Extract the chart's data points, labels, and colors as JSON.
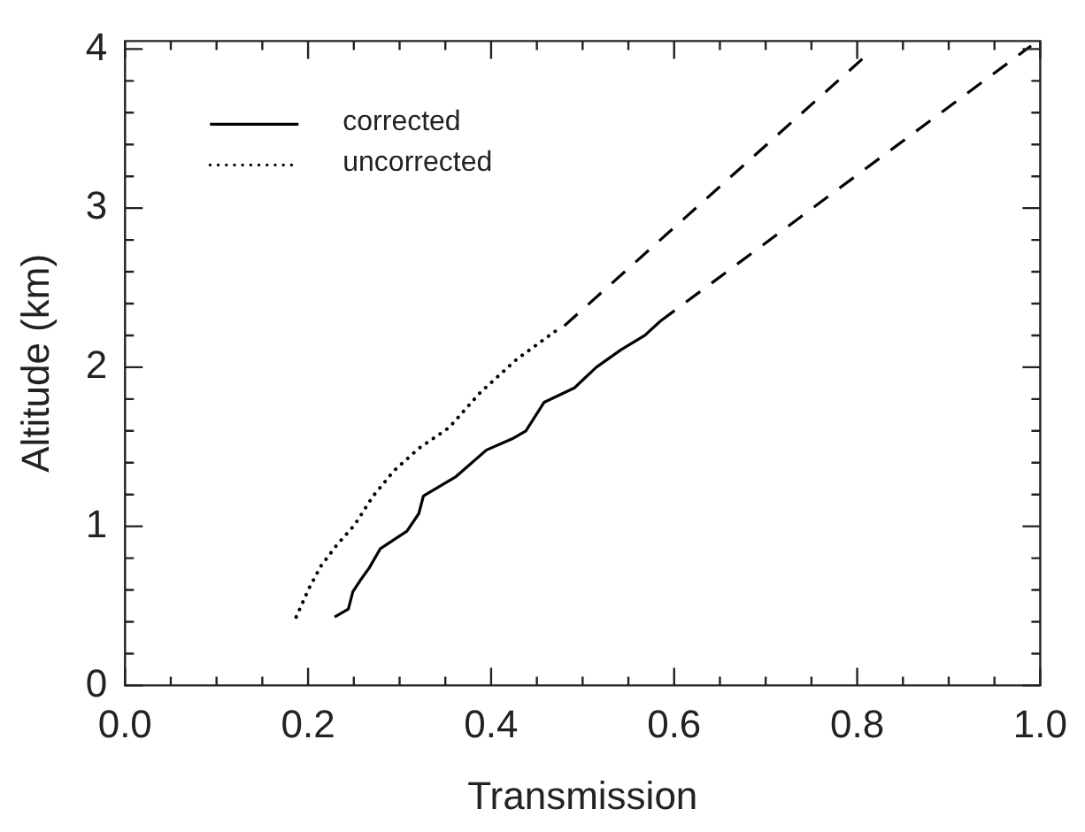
{
  "chart_data": {
    "type": "line",
    "xlabel": "Transmission",
    "ylabel": "Altitude (km)",
    "xlim": [
      0,
      1
    ],
    "ylim": [
      0,
      4.05
    ],
    "xticks": [
      {
        "value": 0,
        "label": "0.0"
      },
      {
        "value": 0.05,
        "label": null
      },
      {
        "value": 0.1,
        "label": null
      },
      {
        "value": 0.15,
        "label": null
      },
      {
        "value": 0.2,
        "label": "0.2"
      },
      {
        "value": 0.25,
        "label": null
      },
      {
        "value": 0.3,
        "label": null
      },
      {
        "value": 0.35,
        "label": null
      },
      {
        "value": 0.4,
        "label": "0.4"
      },
      {
        "value": 0.45,
        "label": null
      },
      {
        "value": 0.5,
        "label": null
      },
      {
        "value": 0.55,
        "label": null
      },
      {
        "value": 0.6,
        "label": "0.6"
      },
      {
        "value": 0.65,
        "label": null
      },
      {
        "value": 0.7,
        "label": null
      },
      {
        "value": 0.75,
        "label": null
      },
      {
        "value": 0.8,
        "label": "0.8"
      },
      {
        "value": 0.85,
        "label": null
      },
      {
        "value": 0.9,
        "label": null
      },
      {
        "value": 0.95,
        "label": null
      },
      {
        "value": 1,
        "label": "1.0"
      }
    ],
    "yticks": [
      0,
      {
        "value": 0.2,
        "label": null
      },
      {
        "value": 0.4,
        "label": null
      },
      {
        "value": 0.6,
        "label": null
      },
      {
        "value": 0.8,
        "label": null
      },
      1,
      {
        "value": 1.2,
        "label": null
      },
      {
        "value": 1.4,
        "label": null
      },
      {
        "value": 1.6,
        "label": null
      },
      {
        "value": 1.8,
        "label": null
      },
      2,
      {
        "value": 2.2,
        "label": null
      },
      {
        "value": 2.4,
        "label": null
      },
      {
        "value": 2.6,
        "label": null
      },
      {
        "value": 2.8,
        "label": null
      },
      3,
      {
        "value": 3.2,
        "label": null
      },
      {
        "value": 3.4,
        "label": null
      },
      {
        "value": 3.6,
        "label": null
      },
      {
        "value": 3.8,
        "label": null
      },
      4
    ],
    "grid": false,
    "legend": "top left",
    "marker": "none",
    "series": [
      {
        "name": "corrected",
        "color": "#000000",
        "line_style": "solid",
        "x": [
          0.229,
          0.244,
          0.249,
          0.257,
          0.267,
          0.279,
          0.308,
          0.321,
          0.326,
          0.361,
          0.395,
          0.423,
          0.438,
          0.458,
          0.491,
          0.515,
          0.542,
          0.568,
          0.585
        ],
        "values": [
          0.43,
          0.48,
          0.59,
          0.66,
          0.74,
          0.86,
          0.97,
          1.08,
          1.19,
          1.31,
          1.48,
          1.55,
          1.6,
          1.78,
          1.87,
          2.0,
          2.11,
          2.2,
          2.29
        ]
      },
      {
        "name": "uncorrected",
        "color": "#000000",
        "line_style": "dotted",
        "x": [
          0.187,
          0.201,
          0.214,
          0.231,
          0.251,
          0.271,
          0.294,
          0.321,
          0.354,
          0.388,
          0.428,
          0.471
        ],
        "values": [
          0.43,
          0.61,
          0.75,
          0.88,
          1.01,
          1.19,
          1.35,
          1.49,
          1.62,
          1.84,
          2.05,
          2.23
        ]
      },
      {
        "color": "#000000",
        "line_style": "dashed",
        "x": [
          0.585,
          0.99
        ],
        "values": [
          2.29,
          4.02
        ]
      },
      {
        "color": "#000000",
        "line_style": "dashed",
        "x": [
          0.48,
          0.81
        ],
        "values": [
          2.26,
          3.96
        ]
      }
    ]
  }
}
